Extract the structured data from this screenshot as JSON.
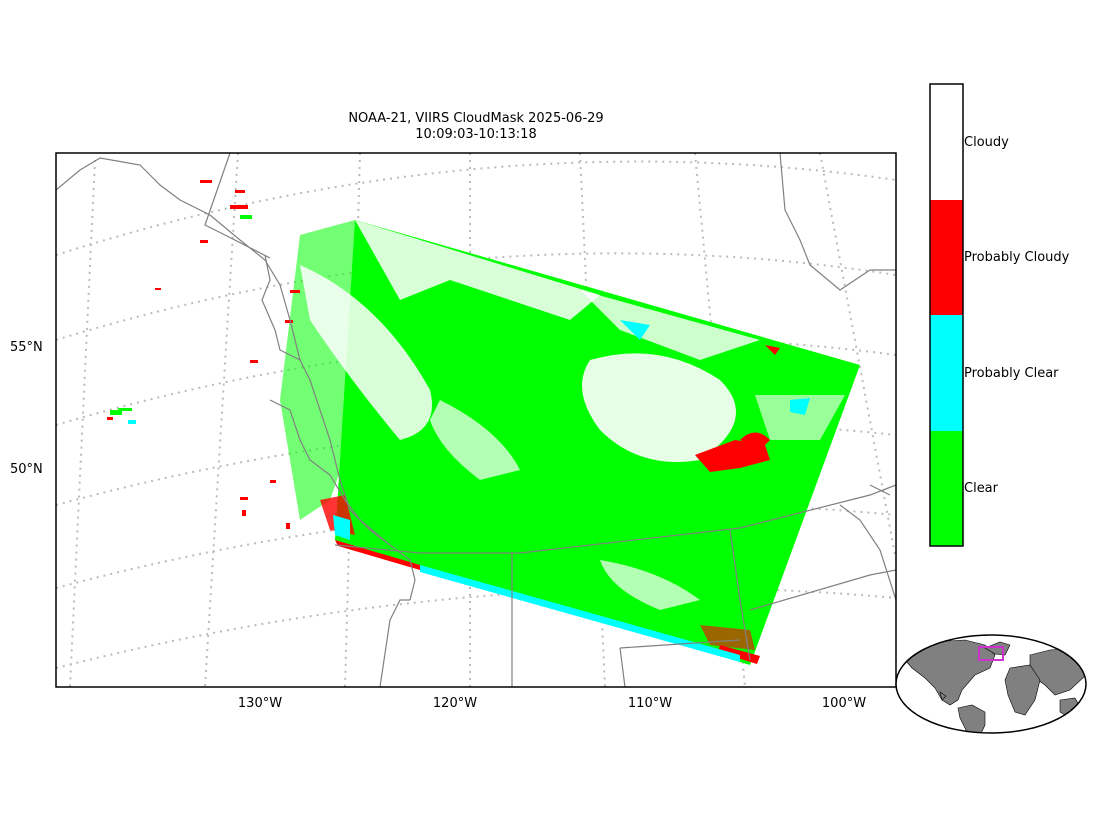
{
  "title": {
    "line1": "NOAA-21, VIIRS CloudMask 2025-06-29",
    "line2": "10:09:03-10:13:18"
  },
  "map": {
    "lat_labels": [
      "55°N",
      "50°N"
    ],
    "lon_labels": [
      "130°W",
      "120°W",
      "110°W",
      "100°W"
    ]
  },
  "legend": {
    "entries": [
      {
        "label": "Cloudy",
        "color": "#ffffff"
      },
      {
        "label": "Probably Cloudy",
        "color": "#ff0000"
      },
      {
        "label": "Probably Clear",
        "color": "#00ffff"
      },
      {
        "label": "Clear",
        "color": "#00ff00"
      }
    ]
  },
  "colors": {
    "coastline": "#808080",
    "graticule": "#bbbbbb",
    "inset_land": "#808080",
    "inset_box": "#cc33cc"
  }
}
